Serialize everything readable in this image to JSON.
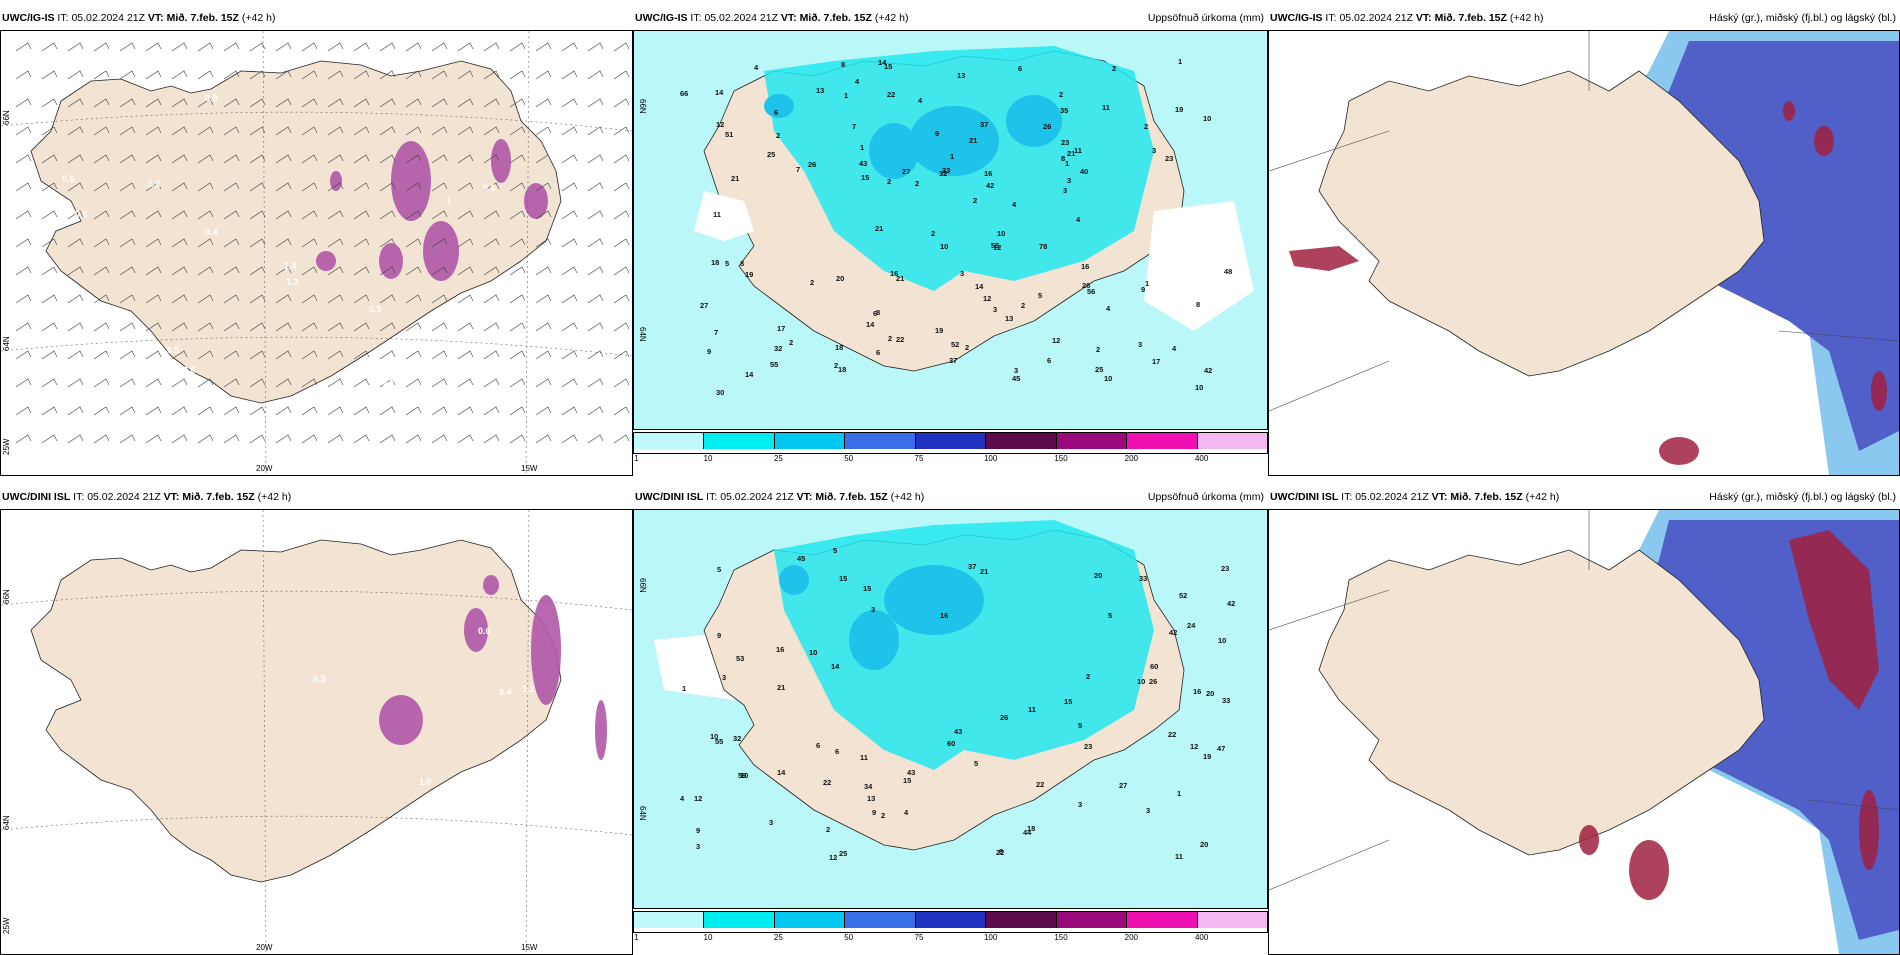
{
  "panels": [
    {
      "id": "ig-wind",
      "model": "UWC/IG-IS",
      "it_label": "IT:",
      "it_value": "05.02.2024 21Z",
      "vt_label": "VT:",
      "vt_value": "Mið. 7.feb. 15Z",
      "lead": "(+42 h)",
      "right_title": "",
      "lat_labels": [
        "66N",
        "64N",
        "25W"
      ],
      "lon_labels": [
        "20W",
        "15W"
      ],
      "values": [
        "0.6",
        "0.9",
        "0.5",
        "1.8",
        "0.6",
        "0.2",
        "3",
        "0.4",
        "1.2",
        "0.6",
        "0.4",
        "0.6",
        "1.4",
        "0.5",
        "1",
        "0.3",
        "0.6",
        "0.8"
      ]
    },
    {
      "id": "ig-precip",
      "model": "UWC/IG-IS",
      "it_label": "IT:",
      "it_value": "05.02.2024 21Z",
      "vt_label": "VT:",
      "vt_value": "Mið. 7.feb. 15Z",
      "lead": "(+42 h)",
      "right_title": "Uppsöfnuð úrkoma (mm)",
      "lat_labels": [
        "66N",
        "64N"
      ],
      "lon_labels": [],
      "values": [
        "14",
        "9",
        "10",
        "14",
        "4",
        "6",
        "3",
        "2",
        "2",
        "14",
        "10",
        "15",
        "22",
        "13",
        "12",
        "43",
        "26",
        "19",
        "10",
        "10",
        "66",
        "55",
        "37",
        "78",
        "56",
        "35",
        "27",
        "21",
        "23",
        "13",
        "17",
        "21",
        "37",
        "30",
        "55",
        "45",
        "52",
        "40",
        "21",
        "19",
        "7",
        "8",
        "7",
        "6",
        "4",
        "2",
        "1",
        "2",
        "48",
        "42",
        "51",
        "23",
        "14",
        "25",
        "17",
        "6",
        "3",
        "2",
        "4",
        "16",
        "42",
        "23",
        "21",
        "19",
        "10",
        "3",
        "2",
        "32",
        "18",
        "16",
        "26",
        "12",
        "2",
        "20",
        "18",
        "18",
        "26",
        "11",
        "9",
        "8",
        "6",
        "5",
        "11",
        "15",
        "13",
        "11",
        "25",
        "8",
        "12",
        "9",
        "12",
        "7",
        "22",
        "21",
        "16",
        "32",
        "27",
        "14",
        "6",
        "8",
        "1",
        "1",
        "2",
        "2",
        "1",
        "3",
        "3",
        "2",
        "2",
        "3",
        "4",
        "4",
        "4",
        "2",
        "2",
        "3",
        "5",
        "2",
        "3",
        "4",
        "2",
        "1",
        "1"
      ]
    },
    {
      "id": "ig-ptype",
      "model": "UWC/IG-IS",
      "it_label": "IT:",
      "it_value": "05.02.2024 21Z",
      "vt_label": "VT:",
      "vt_value": "Mið. 7.feb. 15Z",
      "lead": "(+42 h)",
      "right_title": "Háský (gr.), miðský (fj.bl.) og lágský (bl.)",
      "lat_labels": [],
      "lon_labels": [],
      "values": []
    },
    {
      "id": "dini-wind",
      "model": "UWC/DINI ISL",
      "it_label": "IT:",
      "it_value": "05.02.2024 21Z",
      "vt_label": "VT:",
      "vt_value": "Mið. 7.feb. 15Z",
      "lead": "(+42 h)",
      "right_title": "",
      "lat_labels": [
        "66N",
        "64N",
        "25W"
      ],
      "lon_labels": [
        "20W",
        "15W"
      ],
      "values": [
        "1.0",
        "1.2",
        "0.4",
        "0.4",
        "1.4",
        "0.6",
        "1.2",
        "0.5",
        "0.2"
      ]
    },
    {
      "id": "dini-precip",
      "model": "UWC/DINI ISL",
      "it_label": "IT:",
      "it_value": "05.02.2024 21Z",
      "vt_label": "VT:",
      "vt_value": "Mið. 7.feb. 15Z",
      "lead": "(+42 h)",
      "right_title": "Uppsöfnuð úrkoma (mm)",
      "lat_labels": [
        "66N",
        "64N"
      ],
      "lon_labels": [],
      "values": [
        "10",
        "10",
        "9",
        "9",
        "12",
        "20",
        "11",
        "6",
        "3",
        "45",
        "37",
        "12",
        "11",
        "10",
        "22",
        "60",
        "47",
        "55",
        "59",
        "60",
        "52",
        "33",
        "20",
        "23",
        "42",
        "26",
        "42",
        "24",
        "32",
        "15",
        "19",
        "10",
        "43",
        "43",
        "53",
        "44",
        "22",
        "22",
        "15",
        "23",
        "18",
        "21",
        "20",
        "21",
        "14",
        "15",
        "13",
        "9",
        "16",
        "3",
        "5",
        "1",
        "1",
        "3",
        "26",
        "34",
        "22",
        "27",
        "33",
        "25",
        "14",
        "16",
        "15",
        "11",
        "6",
        "3",
        "8",
        "5",
        "5",
        "2",
        "2",
        "2",
        "3",
        "3",
        "4",
        "5",
        "4",
        "5",
        "12",
        "16",
        "10"
      ]
    },
    {
      "id": "dini-ptype",
      "model": "UWC/DINI ISL",
      "it_label": "IT:",
      "it_value": "05.02.2024 21Z",
      "vt_label": "VT:",
      "vt_value": "Mið. 7.feb. 15Z",
      "lead": "(+42 h)",
      "right_title": "Háský (gr.), miðský (fj.bl.) og lágský (bl.)",
      "lat_labels": [],
      "lon_labels": [],
      "values": []
    }
  ],
  "colorbar": {
    "labels": [
      "1",
      "10",
      "25",
      "50",
      "75",
      "100",
      "150",
      "200",
      "400"
    ],
    "colors": [
      "#bff9fb",
      "#00eef0",
      "#00c8f0",
      "#3a6ee6",
      "#2232c0",
      "#5b0a4a",
      "#9a0a7a",
      "#ee10b0",
      "#f4b8f0"
    ]
  },
  "colors": {
    "land": "#f2e3d2",
    "sea_precip": "#b9f7f8",
    "precip_medium": "#22e8ee",
    "precip_strong": "#1ec3ea",
    "cloud_high": "#5060c8",
    "cloud_mid": "#8ac8f0",
    "cloud_low": "#a02040",
    "magenta": "#b058a8"
  }
}
